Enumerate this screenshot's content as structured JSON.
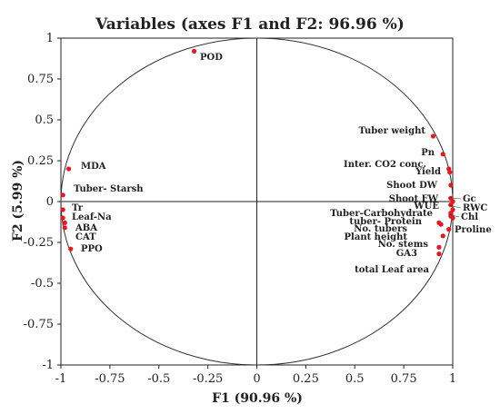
{
  "chart_data": {
    "type": "scatter",
    "title": "Variables (axes F1 and F2: 96.96 %)",
    "xlabel": "F1 (90.96 %)",
    "ylabel": "F2 (5.99 %)",
    "xlim": [
      -1,
      1
    ],
    "ylim": [
      -1,
      1
    ],
    "x_ticks": [
      "-1",
      "-0.75",
      "-0.5",
      "-0.25",
      "0",
      "0.25",
      "0.5",
      "0.75",
      "1"
    ],
    "y_ticks": [
      "1",
      "0.75",
      "0.5",
      "0.25",
      "0",
      "-0.25",
      "-0.5",
      "-0.75",
      "-1"
    ],
    "x_tick_values": [
      -1,
      -0.75,
      -0.5,
      -0.25,
      0,
      0.25,
      0.5,
      0.75,
      1
    ],
    "y_tick_values": [
      1,
      0.75,
      0.5,
      0.25,
      0,
      -0.25,
      -0.5,
      -0.75,
      -1
    ],
    "grid": false,
    "unit_circle": true,
    "point_color": "#e8171f",
    "points": [
      {
        "label": "POD",
        "x": -0.32,
        "y": 0.92
      },
      {
        "label": "MDA",
        "x": -0.96,
        "y": 0.2
      },
      {
        "label": "Tuber- Starsh",
        "x": -0.99,
        "y": 0.04
      },
      {
        "label": "Tr",
        "x": -0.99,
        "y": -0.05
      },
      {
        "label": "Leaf-Na",
        "x": -0.99,
        "y": -0.1
      },
      {
        "label": "ABA",
        "x": -0.98,
        "y": -0.13
      },
      {
        "label": "CAT",
        "x": -0.98,
        "y": -0.16
      },
      {
        "label": "PPO",
        "x": -0.95,
        "y": -0.29
      },
      {
        "label": "Tuber weight",
        "x": 0.9,
        "y": 0.4
      },
      {
        "label": "Pn",
        "x": 0.95,
        "y": 0.29
      },
      {
        "label": "Inter. CO2 conc.",
        "x": 0.98,
        "y": 0.2
      },
      {
        "label": "Yield",
        "x": 0.985,
        "y": 0.18
      },
      {
        "label": "Shoot DW",
        "x": 0.99,
        "y": 0.1
      },
      {
        "label": "Shoot FW",
        "x": 0.99,
        "y": 0.02
      },
      {
        "label": "Gc",
        "x": 1.0,
        "y": 0.0
      },
      {
        "label": "WUE",
        "x": 0.99,
        "y": -0.02
      },
      {
        "label": "RWC",
        "x": 1.0,
        "y": -0.05
      },
      {
        "label": "Chl",
        "x": 1.0,
        "y": -0.1
      },
      {
        "label": "Tuber-Carbohydrate",
        "x": 0.99,
        "y": -0.07
      },
      {
        "label": "tuber- Protein",
        "x": 0.99,
        "y": -0.09
      },
      {
        "label": "No. tubers",
        "x": 0.94,
        "y": -0.14
      },
      {
        "label": "Plant height",
        "x": 0.93,
        "y": -0.13
      },
      {
        "label": "Proline",
        "x": 0.98,
        "y": -0.17
      },
      {
        "label": "No. stems",
        "x": 0.95,
        "y": -0.21
      },
      {
        "label": "GA3",
        "x": 0.93,
        "y": -0.28
      },
      {
        "label": "total Leaf area",
        "x": 0.93,
        "y": -0.32
      }
    ]
  }
}
